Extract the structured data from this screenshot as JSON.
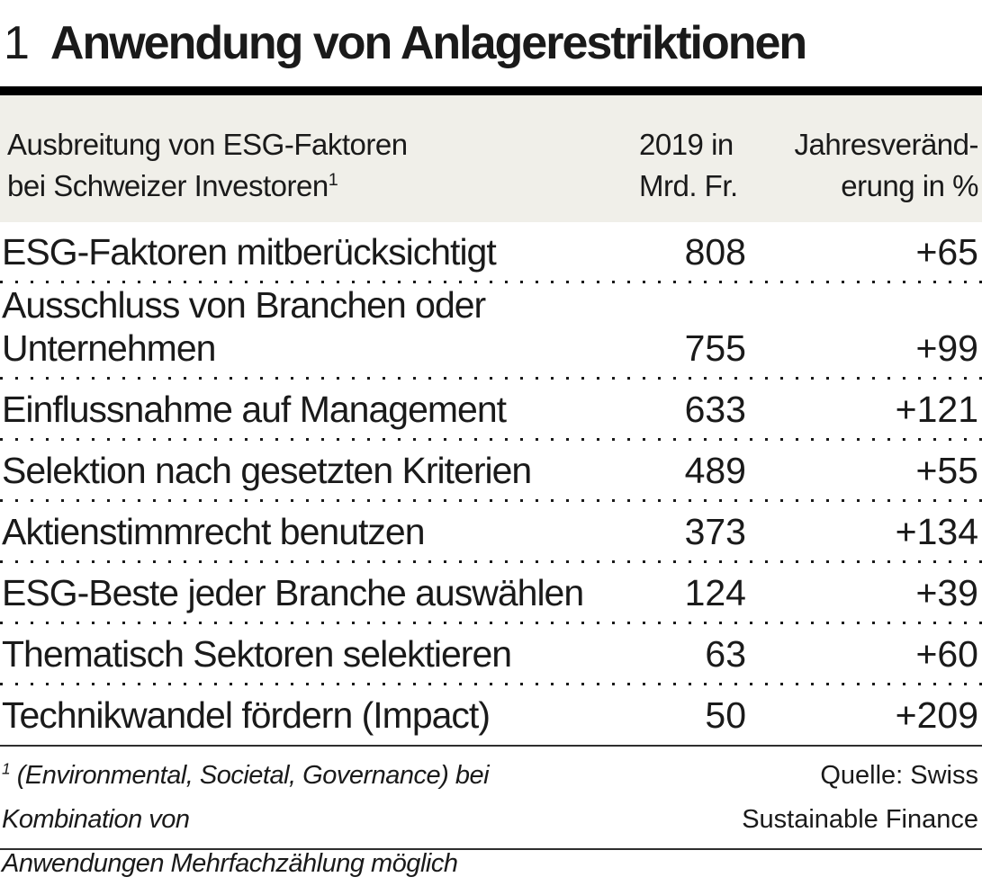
{
  "page": {
    "index": "1",
    "title": "Anwendung von Anlagerestriktionen"
  },
  "table": {
    "header": {
      "col_label": "Ausbreitung von ESG-Faktoren\nbei Schweizer Investoren",
      "footnote_marker": "1",
      "col_value": "2019 in\nMrd. Fr.",
      "col_change": "Jahresveränd-\nerung in %"
    },
    "rows": [
      {
        "label": "ESG-Faktoren mitberücksichtigt",
        "value": "808",
        "change": "+65"
      },
      {
        "label": "Ausschluss von Branchen oder\nUnternehmen",
        "value": "755",
        "change": "+99"
      },
      {
        "label": "Einflussnahme auf Management",
        "value": "633",
        "change": "+121"
      },
      {
        "label": "Selektion nach gesetzten Kriterien",
        "value": "489",
        "change": "+55"
      },
      {
        "label": "Aktienstimmrecht benutzen",
        "value": "373",
        "change": "+134"
      },
      {
        "label": "ESG-Beste jeder Branche auswählen",
        "value": "124",
        "change": "+39"
      },
      {
        "label": "Thematisch Sektoren selektieren",
        "value": "63",
        "change": "+60"
      },
      {
        "label": "Technikwandel fördern (Impact)",
        "value": "50",
        "change": "+209"
      }
    ]
  },
  "footer": {
    "footnote_marker": "1",
    "footnote": "(Environmental, Societal, Governance) bei Kombination von\nAnwendungen Mehrfachzählung möglich",
    "source": "Quelle: Swiss\nSustainable Finance"
  },
  "colors": {
    "header_band_bg": "#f0efe9",
    "text": "#1a1a1a",
    "rule": "#000000"
  },
  "chart_data": {
    "type": "table",
    "title": "1 Anwendung von Anlagerestriktionen",
    "subtitle": "Ausbreitung von ESG-Faktoren bei Schweizer Investoren",
    "columns": [
      "Ausbreitung von ESG-Faktoren bei Schweizer Investoren",
      "2019 in Mrd. Fr.",
      "Jahresveränderung in %"
    ],
    "categories": [
      "ESG-Faktoren mitberücksichtigt",
      "Ausschluss von Branchen oder Unternehmen",
      "Einflussnahme auf Management",
      "Selektion nach gesetzten Kriterien",
      "Aktienstimmrecht benutzen",
      "ESG-Beste jeder Branche auswählen",
      "Thematisch Sektoren selektieren",
      "Technikwandel fördern (Impact)"
    ],
    "series": [
      {
        "name": "2019 in Mrd. Fr.",
        "values": [
          808,
          755,
          633,
          489,
          373,
          124,
          63,
          50
        ]
      },
      {
        "name": "Jahresveränderung in %",
        "values": [
          65,
          99,
          121,
          55,
          134,
          39,
          60,
          209
        ]
      }
    ],
    "footnote": "¹ (Environmental, Societal, Governance) bei Kombination von Anwendungen Mehrfachzählung möglich",
    "source": "Quelle: Swiss Sustainable Finance"
  }
}
